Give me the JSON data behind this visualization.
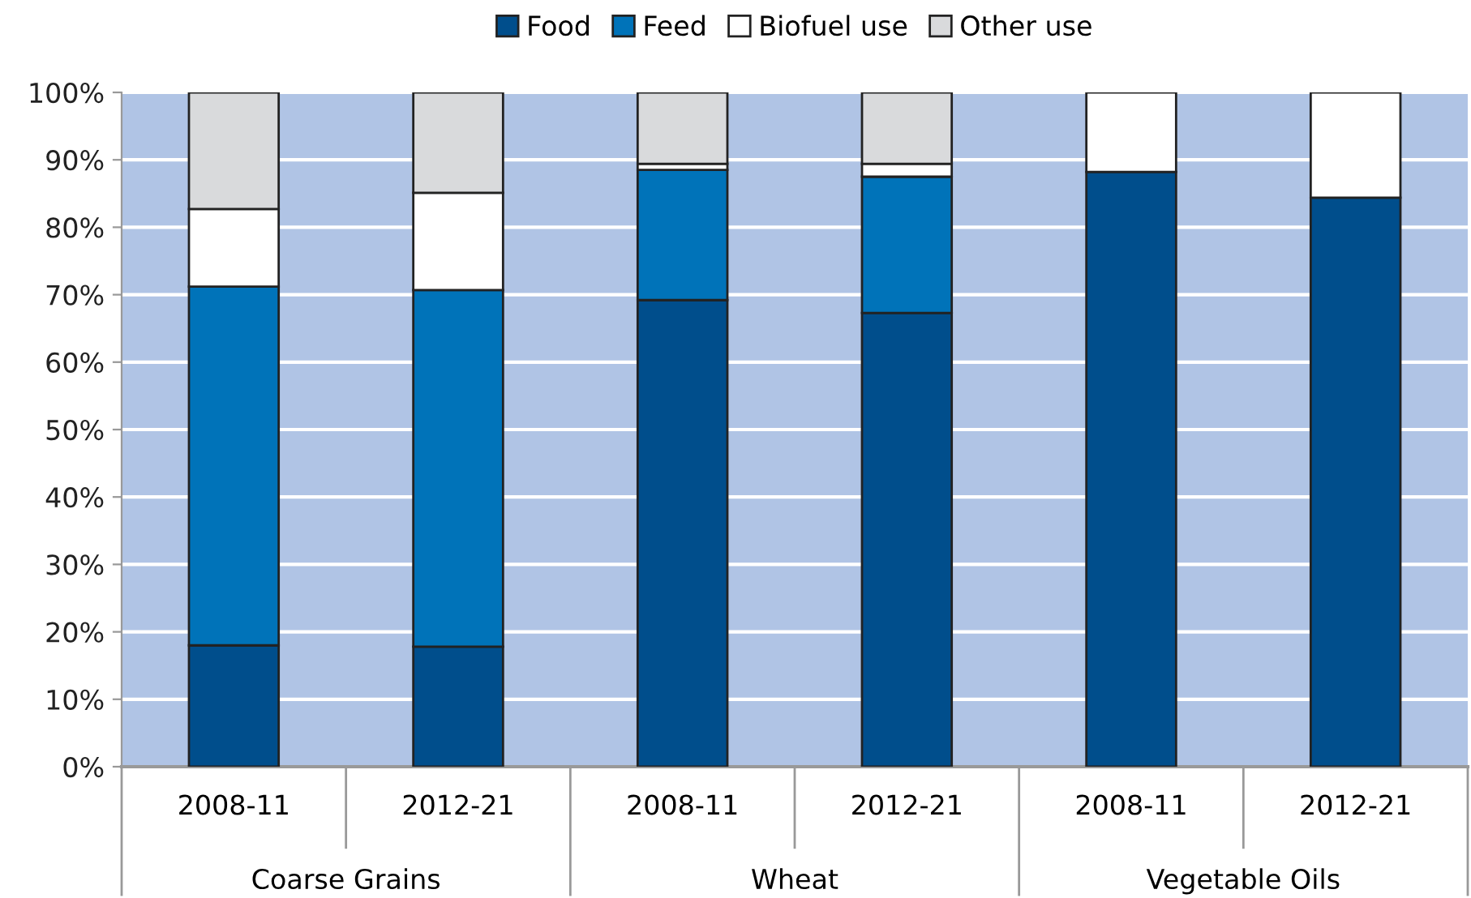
{
  "chart_data": {
    "type": "bar",
    "stacked": true,
    "categories": [
      "2008-11",
      "2012-21",
      "2008-11",
      "2012-21",
      "2008-11",
      "2012-21"
    ],
    "series": [
      {
        "name": "Food",
        "color": "#004e8c",
        "values": [
          18.0,
          17.8,
          69.2,
          67.3,
          88.2,
          84.4
        ]
      },
      {
        "name": "Feed",
        "color": "#0073b9",
        "values": [
          53.2,
          52.9,
          19.3,
          20.2,
          null,
          null
        ]
      },
      {
        "name": "Biofuel use",
        "color": "#ffffff",
        "values": [
          11.5,
          14.4,
          0.9,
          1.9,
          11.8,
          15.6
        ]
      },
      {
        "name": "Other use",
        "color": "#d9dadc",
        "values": [
          17.3,
          14.9,
          10.6,
          10.6,
          null,
          null
        ]
      }
    ],
    "ylim": [
      0,
      100
    ],
    "yticks": [
      {
        "value": 0,
        "label": "0%"
      },
      {
        "value": 10,
        "label": "10%"
      },
      {
        "value": 20,
        "label": "20%"
      },
      {
        "value": 30,
        "label": "30%"
      },
      {
        "value": 40,
        "label": "40%"
      },
      {
        "value": 50,
        "label": "50%"
      },
      {
        "value": 60,
        "label": "60%"
      },
      {
        "value": 70,
        "label": "70%"
      },
      {
        "value": 80,
        "label": "80%"
      },
      {
        "value": 90,
        "label": "90%"
      },
      {
        "value": 100,
        "label": "100%"
      }
    ],
    "annotations": [
      "Coarse Grains",
      "Wheat",
      "Vegetable Oils"
    ],
    "grid": "y",
    "legend": "top"
  }
}
